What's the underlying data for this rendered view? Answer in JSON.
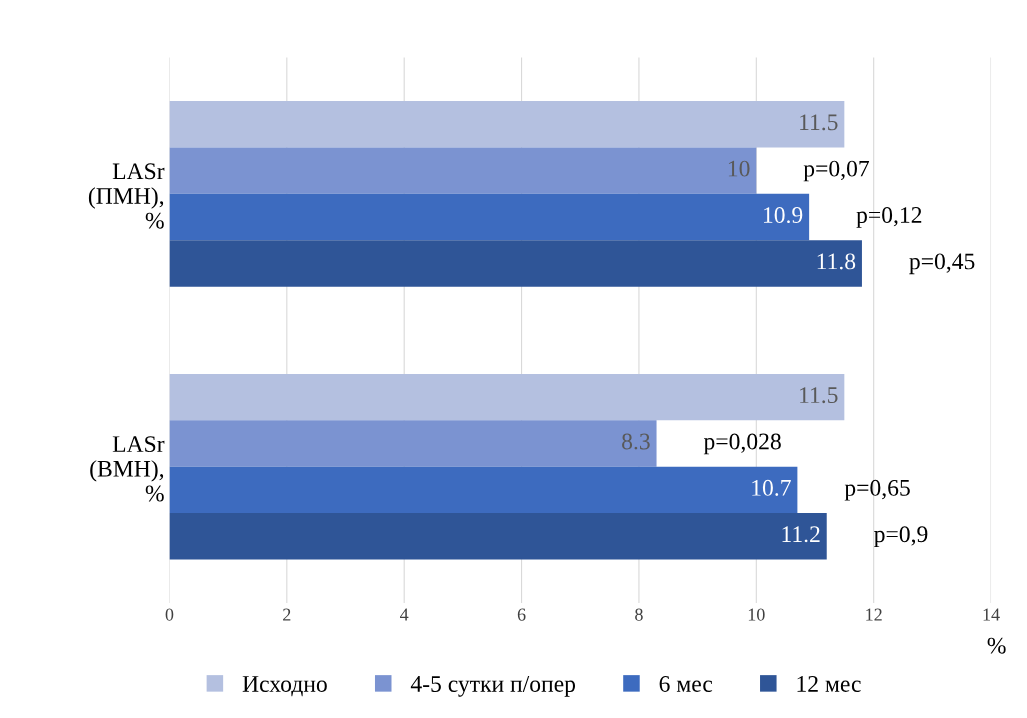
{
  "chart_data": {
    "type": "bar",
    "orientation": "horizontal",
    "categories": [
      "LASr\n(ПМН),\n%",
      "LASr\n(ВМН),\n%"
    ],
    "series": [
      {
        "name": "Исходно",
        "color": "#b4c0e0",
        "values": [
          11.5,
          11.5
        ]
      },
      {
        "name": "4-5 сутки п/опер",
        "color": "#7b93d1",
        "values": [
          10,
          8.3
        ]
      },
      {
        "name": "6 мес",
        "color": "#3d6bbf",
        "values": [
          10.9,
          10.7
        ]
      },
      {
        "name": "12 мес",
        "color": "#2f5597",
        "values": [
          11.8,
          11.2
        ]
      }
    ],
    "xlim": [
      0,
      14
    ],
    "xticks": [
      0,
      2,
      4,
      6,
      8,
      10,
      12,
      14
    ],
    "xlabel": "%",
    "grid": "x",
    "legend": "bottom",
    "data_labels": true,
    "annotations": [
      "p=0,07",
      "p=0,12",
      "p=0,45",
      "p=0,028",
      "p=0,65",
      "p=0,9"
    ]
  }
}
